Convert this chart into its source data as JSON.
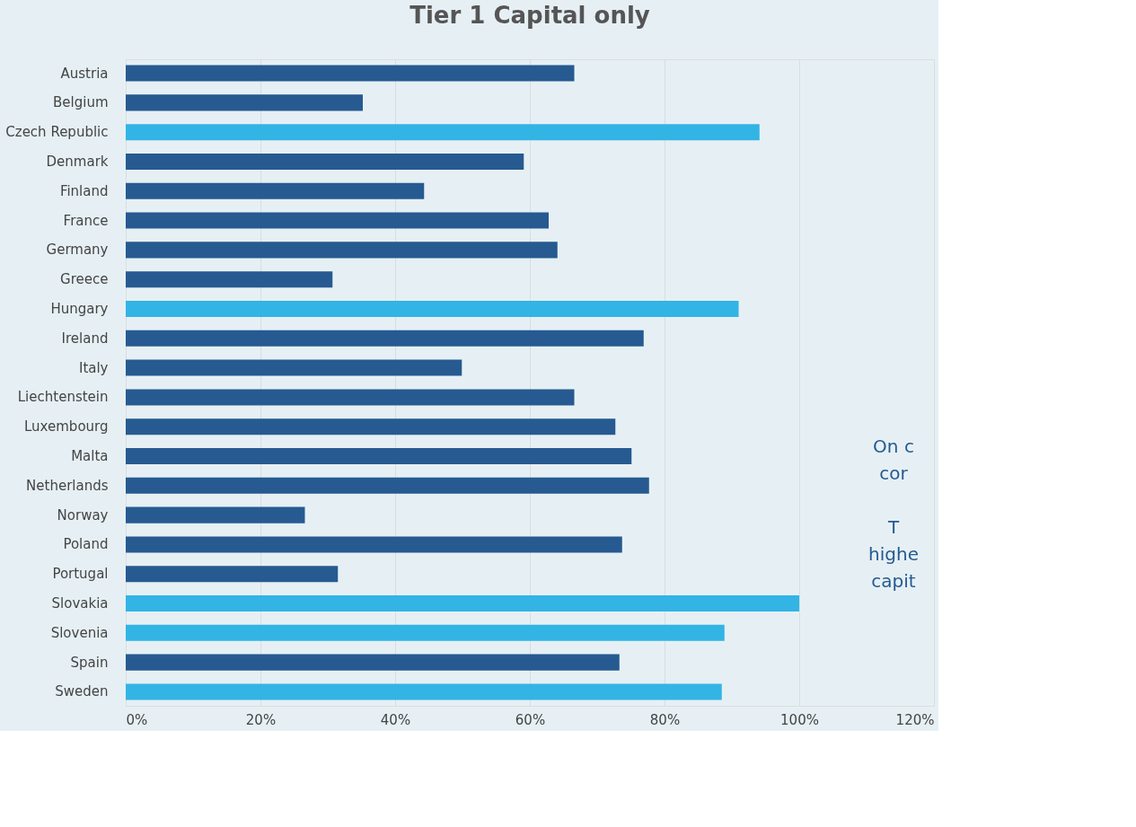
{
  "chart_data": {
    "type": "bar",
    "orientation": "horizontal",
    "title": "Tier 1 Capital only",
    "categories": [
      "Austria",
      "Belgium",
      "Czech Republic",
      "Denmark",
      "Finland",
      "France",
      "Germany",
      "Greece",
      "Hungary",
      "Ireland",
      "Italy",
      "Liechtenstein",
      "Luxembourg",
      "Malta",
      "Netherlands",
      "Norway",
      "Poland",
      "Portugal",
      "Slovakia",
      "Slovenia",
      "Spain",
      "Sweden"
    ],
    "values": [
      66.6,
      35.2,
      94.1,
      59.1,
      44.3,
      62.8,
      64.1,
      30.7,
      91.0,
      76.9,
      49.9,
      66.6,
      72.7,
      75.1,
      77.7,
      26.6,
      73.7,
      31.5,
      100,
      88.9,
      73.3,
      88.5
    ],
    "colors": [
      "#265a91",
      "#265a91",
      "#32b4e5",
      "#265a91",
      "#265a91",
      "#265a91",
      "#265a91",
      "#265a91",
      "#32b4e5",
      "#265a91",
      "#265a91",
      "#265a91",
      "#265a91",
      "#265a91",
      "#265a91",
      "#265a91",
      "#265a91",
      "#265a91",
      "#32b4e5",
      "#32b4e5",
      "#265a91",
      "#32b4e5"
    ],
    "xlim": [
      0,
      120
    ],
    "xticks": [
      {
        "value": 0,
        "label": "0%"
      },
      {
        "value": 20,
        "label": "20%"
      },
      {
        "value": 40,
        "label": "40%"
      },
      {
        "value": 60,
        "label": "60%"
      },
      {
        "value": 80,
        "label": "80%"
      },
      {
        "value": 100,
        "label": "100%"
      },
      {
        "value": 120,
        "label": "120%"
      }
    ],
    "grid": "x",
    "annotations": [
      "On c",
      "cor",
      "T",
      "highe",
      "capit"
    ]
  }
}
